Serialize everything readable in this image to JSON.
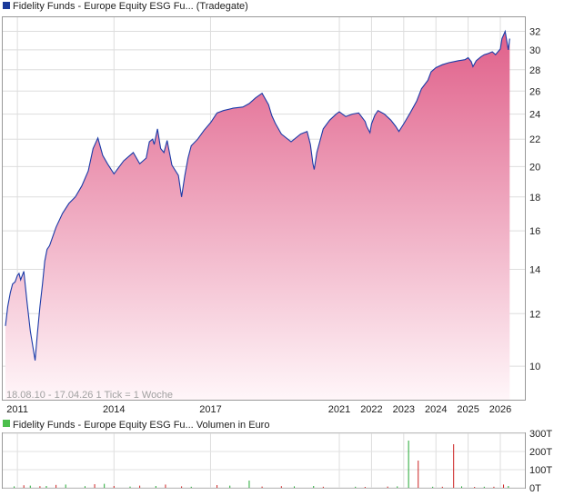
{
  "chart_data": [
    {
      "type": "area",
      "title": "Fidelity Funds - Europe Equity ESG Fu... (Tradegate)",
      "title_marker_color": "#1a3a9a",
      "footnote": "18.08.10 - 17.04.26   1 Tick = 1 Woche",
      "scale": "log",
      "ylim": [
        8.9,
        33.6
      ],
      "y_ticks": [
        10,
        12,
        14,
        16,
        18,
        20,
        22,
        24,
        26,
        28,
        30,
        32
      ],
      "x_tick_labels": [
        "2011",
        "2014",
        "2017",
        "2021",
        "2022",
        "2023",
        "2024",
        "2025",
        "2026"
      ],
      "x_tick_dates": [
        2011.0,
        2014.0,
        2017.0,
        2021.0,
        2022.0,
        2023.0,
        2024.0,
        2025.0,
        2026.0
      ],
      "grid": true,
      "line_color": "#1a3aa8",
      "fill_top_color": "#e0608a",
      "fill_bottom_color": "#fff6f9",
      "series": [
        {
          "x": [
            2010.63,
            2010.7,
            2010.78,
            2010.85,
            2010.93,
            2011.0,
            2011.05,
            2011.1,
            2011.2,
            2011.3,
            2011.4,
            2011.55,
            2011.62,
            2011.7,
            2011.78,
            2011.85,
            2011.92,
            2012.0,
            2012.2,
            2012.4,
            2012.6,
            2012.8,
            2013.0,
            2013.2,
            2013.35,
            2013.5,
            2013.65,
            2013.8,
            2014.0,
            2014.3,
            2014.6,
            2014.8,
            2015.0,
            2015.1,
            2015.2,
            2015.25,
            2015.35,
            2015.45,
            2015.55,
            2015.65,
            2015.8,
            2016.0,
            2016.1,
            2016.2,
            2016.3,
            2016.4,
            2016.6,
            2016.8,
            2017.0,
            2017.2,
            2017.4,
            2017.7,
            2018.0,
            2018.2,
            2018.4,
            2018.6,
            2018.8,
            2018.9,
            2019.0,
            2019.02,
            2019.2,
            2019.5,
            2019.8,
            2020.0,
            2020.1,
            2020.18,
            2020.22,
            2020.3,
            2020.5,
            2020.7,
            2020.9,
            2021.0,
            2021.2,
            2021.4,
            2021.6,
            2021.8,
            2021.85,
            2021.95,
            2022.0,
            2022.1,
            2022.2,
            2022.4,
            2022.6,
            2022.75,
            2022.85,
            2023.0,
            2023.2,
            2023.4,
            2023.55,
            2023.75,
            2023.85,
            2024.0,
            2024.2,
            2024.4,
            2024.55,
            2024.7,
            2024.9,
            2025.0,
            2025.1,
            2025.15,
            2025.25,
            2025.4,
            2025.5,
            2025.6,
            2025.75,
            2025.85,
            2026.0,
            2026.05,
            2026.15,
            2026.25,
            2026.29
          ],
          "y": [
            11.5,
            12.3,
            12.9,
            13.3,
            13.4,
            13.7,
            13.8,
            13.5,
            13.9,
            12.5,
            11.3,
            10.2,
            11.2,
            12.3,
            13.3,
            14.4,
            15.0,
            15.2,
            16.2,
            17.0,
            17.6,
            18.0,
            18.7,
            19.7,
            21.3,
            22.1,
            20.8,
            20.2,
            19.5,
            20.4,
            21.0,
            20.2,
            20.6,
            21.8,
            22.0,
            21.6,
            22.8,
            21.3,
            21.0,
            21.9,
            20.1,
            19.4,
            18.0,
            19.4,
            20.6,
            21.5,
            22.0,
            22.7,
            23.3,
            24.1,
            24.3,
            24.5,
            24.6,
            24.9,
            25.4,
            25.8,
            24.8,
            23.9,
            23.3,
            23.2,
            22.4,
            21.8,
            22.4,
            22.6,
            21.6,
            20.2,
            19.8,
            21.0,
            22.8,
            23.5,
            24.0,
            24.2,
            23.8,
            24.0,
            24.1,
            23.4,
            23.0,
            22.5,
            23.2,
            23.9,
            24.3,
            24.0,
            23.5,
            23.0,
            22.6,
            23.2,
            24.1,
            25.1,
            26.2,
            27.0,
            27.8,
            28.2,
            28.5,
            28.7,
            28.8,
            28.9,
            29.0,
            29.2,
            28.8,
            28.3,
            28.9,
            29.3,
            29.5,
            29.6,
            29.8,
            29.5,
            30.1,
            31.2,
            32.0,
            30.0,
            31.2
          ],
          "line_color": "#1a3aa8"
        }
      ]
    },
    {
      "type": "bar",
      "title": "Fidelity Funds - Europe Equity ESG Fu... Volumen in Euro",
      "title_marker_color": "#4cbf4c",
      "y_ticks": [
        0,
        100,
        200,
        300
      ],
      "y_tick_labels": [
        "0T",
        "100T",
        "200T",
        "300T"
      ],
      "ylim": [
        0,
        300
      ],
      "up_color": "#22a833",
      "down_color": "#cc2222",
      "series": [
        {
          "name": "up",
          "x": [
            2010.9,
            2011.4,
            2011.9,
            2012.5,
            2013.1,
            2013.7,
            2014.5,
            2015.3,
            2016.4,
            2017.6,
            2018.2,
            2019.6,
            2020.2,
            2021.5,
            2022.8,
            2023.15,
            2023.9,
            2024.8,
            2025.5,
            2026.25
          ],
          "values": [
            8,
            12,
            10,
            18,
            9,
            22,
            7,
            10,
            6,
            12,
            40,
            8,
            10,
            6,
            8,
            260,
            6,
            8,
            6,
            10
          ],
          "color": "#22a833"
        },
        {
          "name": "down",
          "x": [
            2011.2,
            2011.7,
            2012.2,
            2013.4,
            2014.0,
            2014.8,
            2015.6,
            2016.1,
            2017.2,
            2018.6,
            2019.2,
            2020.5,
            2021.8,
            2022.5,
            2023.45,
            2024.2,
            2024.55,
            2025.2,
            2025.8,
            2026.1
          ],
          "values": [
            14,
            9,
            16,
            20,
            10,
            12,
            18,
            8,
            15,
            7,
            9,
            6,
            5,
            7,
            150,
            6,
            240,
            5,
            6,
            18
          ],
          "color": "#cc2222"
        }
      ]
    }
  ]
}
